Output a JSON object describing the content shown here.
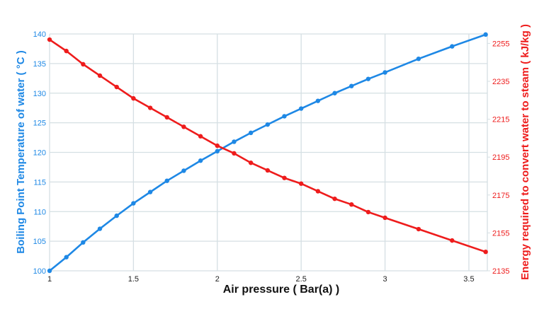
{
  "chart_data": {
    "type": "line",
    "title": "",
    "xlabel": "Air pressure ( Bar(a) )",
    "ylabel": "Boiling Point Temperature of water ( °C )",
    "y2label": "Energy required to convert water to steam ( kJ/kg )",
    "xlim": [
      1,
      3.61
    ],
    "ylim": [
      100,
      140
    ],
    "y2lim": [
      2135,
      2260
    ],
    "x_ticks": [
      "1",
      "1.5",
      "2",
      "2.5",
      "3",
      "3.5"
    ],
    "y_ticks": [
      "100",
      "105",
      "110",
      "115",
      "120",
      "125",
      "130",
      "135",
      "140"
    ],
    "y2_ticks": [
      "2135",
      "2155",
      "2175",
      "2195",
      "2215",
      "2235",
      "2255"
    ],
    "grid": true,
    "x": [
      1.0,
      1.1,
      1.2,
      1.3,
      1.4,
      1.5,
      1.6,
      1.7,
      1.8,
      1.9,
      2.0,
      2.1,
      2.2,
      2.3,
      2.4,
      2.5,
      2.6,
      2.7,
      2.8,
      2.9,
      3.0,
      3.2,
      3.4,
      3.6
    ],
    "series": [
      {
        "axis": "left",
        "color": "#1e88e5",
        "values": [
          100,
          102.3,
          104.8,
          107.1,
          109.3,
          111.4,
          113.3,
          115.2,
          116.9,
          118.6,
          120.2,
          121.8,
          123.3,
          124.7,
          126.1,
          127.4,
          128.7,
          130.0,
          131.2,
          132.4,
          133.5,
          135.8,
          137.9,
          139.9
        ]
      },
      {
        "axis": "right",
        "color": "#ee1c1c",
        "values": [
          2257,
          2251,
          2244,
          2238,
          2232,
          2226,
          2221,
          2216,
          2211,
          2206,
          2201,
          2197,
          2192,
          2188,
          2184,
          2181,
          2177,
          2173,
          2170,
          2166,
          2163,
          2157,
          2151,
          2145
        ]
      }
    ]
  }
}
